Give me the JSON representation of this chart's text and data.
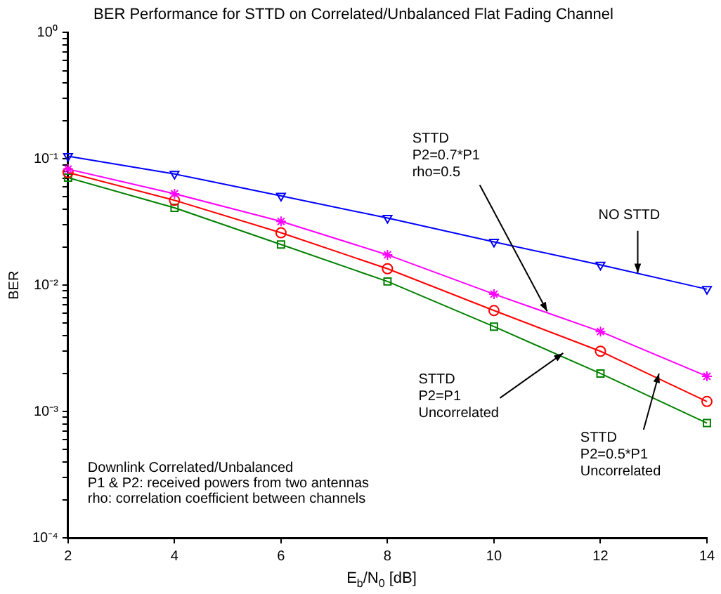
{
  "chart_data": {
    "type": "line",
    "title": "BER Performance for STTD on Correlated/Unbalanced Flat Fading Channel",
    "xlabel": "E$_{b}$/N$_{0}$ [dB]",
    "ylabel": "BER",
    "log": "y",
    "grid": false,
    "legend": false,
    "line_style": "solid",
    "x": [
      2,
      4,
      6,
      8,
      10,
      12,
      14
    ],
    "series": [
      {
        "color": "#0000ff",
        "marker": "triangle",
        "values": [
          0.105,
          0.076,
          0.051,
          0.034,
          0.022,
          0.0145,
          0.0093
        ]
      },
      {
        "color": "#ff00ff",
        "marker": "cross",
        "values": [
          0.083,
          0.053,
          0.032,
          0.0174,
          0.0085,
          0.0043,
          0.0019
        ]
      },
      {
        "color": "#ff0000",
        "marker": "circle",
        "values": [
          0.078,
          0.047,
          0.026,
          0.0135,
          0.0063,
          0.003,
          0.0012
        ]
      },
      {
        "color": "#008000",
        "marker": "square",
        "values": [
          0.071,
          0.041,
          0.021,
          0.0107,
          0.0047,
          0.002,
          0.00081
        ]
      }
    ],
    "xlim": [
      2,
      14
    ],
    "xticks": [
      2,
      4,
      6,
      8,
      10,
      12,
      14
    ],
    "ylim": [
      0.0001,
      1
    ],
    "yticks": [
      {
        "value": 0.0001,
        "label": "10⁻⁴"
      },
      {
        "value": 0.0002,
        "label": null
      },
      {
        "value": 0.0003,
        "label": null
      },
      {
        "value": 0.0004,
        "label": null
      },
      {
        "value": 0.0005,
        "label": null
      },
      {
        "value": 0.0006,
        "label": null
      },
      {
        "value": 0.0007,
        "label": null
      },
      {
        "value": 0.0008,
        "label": null
      },
      {
        "value": 0.0009,
        "label": null
      },
      {
        "value": 0.001,
        "label": "10⁻³"
      },
      {
        "value": 0.002,
        "label": null
      },
      {
        "value": 0.003,
        "label": null
      },
      {
        "value": 0.004,
        "label": null
      },
      {
        "value": 0.005,
        "label": null
      },
      {
        "value": 0.006,
        "label": null
      },
      {
        "value": 0.007,
        "label": null
      },
      {
        "value": 0.008,
        "label": null
      },
      {
        "value": 0.009,
        "label": null
      },
      {
        "value": 0.01,
        "label": "10⁻²"
      },
      {
        "value": 0.02,
        "label": null
      },
      {
        "value": 0.03,
        "label": null
      },
      {
        "value": 0.04,
        "label": null
      },
      {
        "value": 0.05,
        "label": null
      },
      {
        "value": 0.06,
        "label": null
      },
      {
        "value": 0.07,
        "label": null
      },
      {
        "value": 0.08,
        "label": null
      },
      {
        "value": 0.09,
        "label": null
      },
      {
        "value": 0.1,
        "label": "10⁻¹"
      },
      {
        "value": 0.2,
        "label": null
      },
      {
        "value": 0.3,
        "label": null
      },
      {
        "value": 0.4,
        "label": null
      },
      {
        "value": 0.5,
        "label": null
      },
      {
        "value": 0.6,
        "label": null
      },
      {
        "value": 0.7,
        "label": null
      },
      {
        "value": 0.8,
        "label": null
      },
      {
        "value": 0.9,
        "label": null
      },
      {
        "value": 1,
        "label": "10⁰"
      }
    ],
    "annotations": [
      {
        "text": "NO STTD",
        "x": 12.7,
        "y": 0.0125
      },
      {
        "text": "STTD\nP2=0.7*P1\nrho=0.5",
        "x": 11,
        "y": 0.0062
      },
      {
        "text": "STTD\nP2=P1\nUncorrelated",
        "x": 11.3,
        "y": 0.0029
      },
      {
        "text": "STTD\nP2=0.5*P1\nUncorrelated",
        "x": 13.1,
        "y": 0.002
      },
      "Downlink Correlated/Unbalanced\nP1 & P2: received powers from two antennas\nrho: correlation coefficient between channels"
    ]
  }
}
